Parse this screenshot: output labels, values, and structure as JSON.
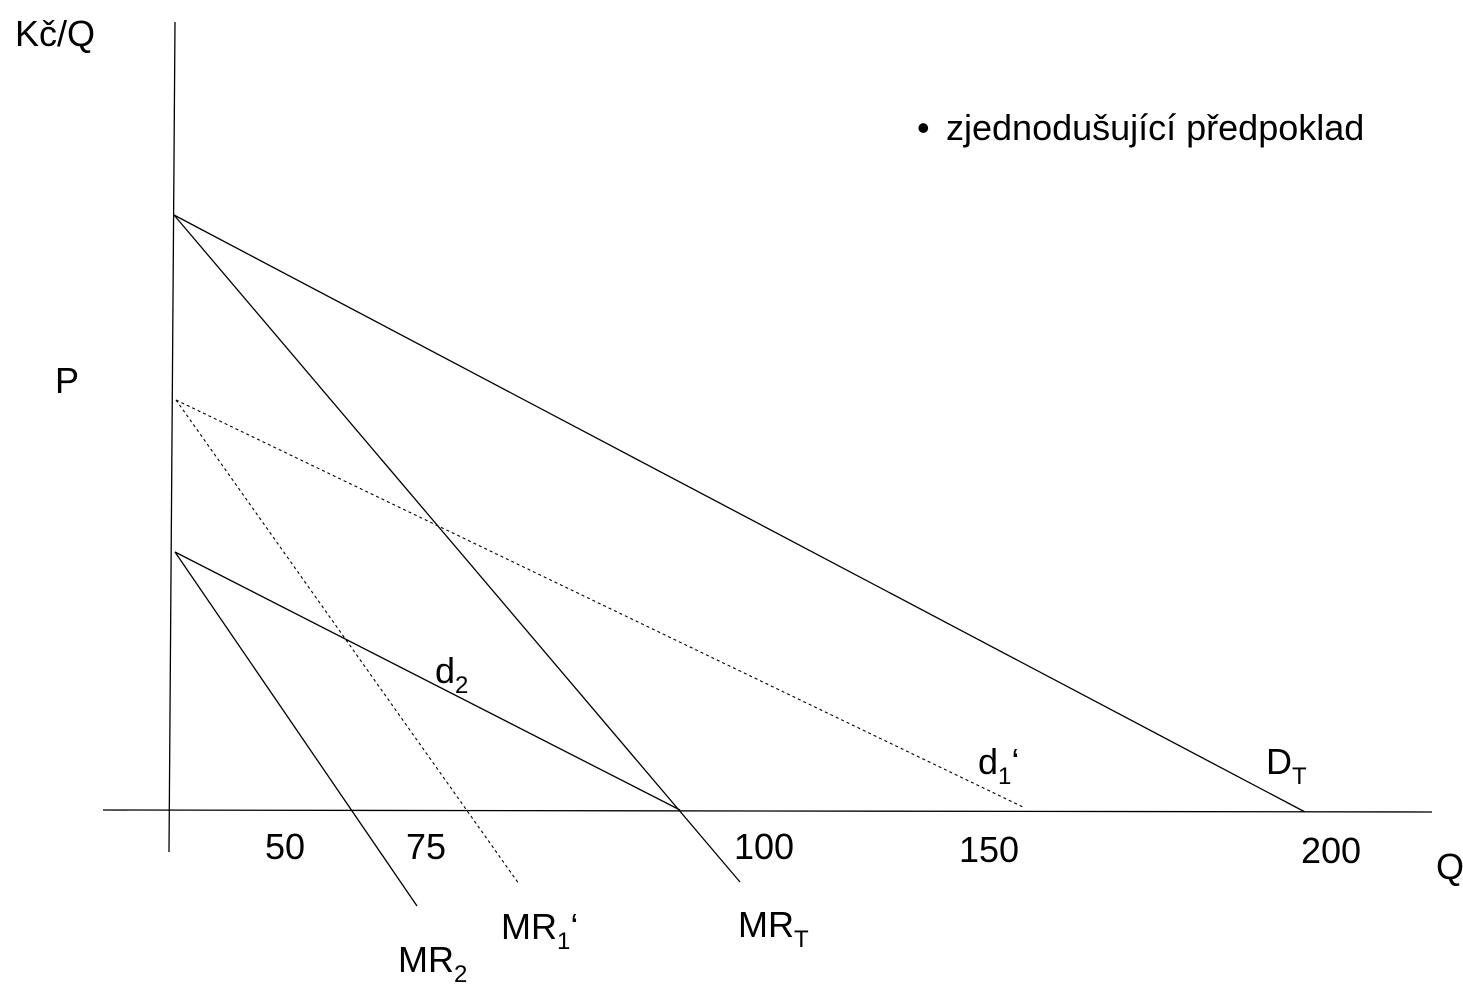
{
  "axes": {
    "y_label": "Kč/Q",
    "x_label": "Q",
    "price_label": "P"
  },
  "x_ticks": [
    "50",
    "75",
    "100",
    "150",
    "200"
  ],
  "note": {
    "bullet": "•",
    "text": "zjednodušující předpoklad"
  },
  "curves": {
    "D_T": {
      "main": "D",
      "sub": "T",
      "style": "solid"
    },
    "MR_T": {
      "main": "MR",
      "sub": "T",
      "style": "solid"
    },
    "d1_prime": {
      "main": "d",
      "sub": "1",
      "suffix": "‘",
      "style": "dashed"
    },
    "MR1_prime": {
      "main": "MR",
      "sub": "1",
      "suffix": "‘",
      "style": "dashed"
    },
    "d2": {
      "main": "d",
      "sub": "2",
      "style": "solid"
    },
    "MR2": {
      "main": "MR",
      "sub": "2",
      "style": "solid"
    }
  },
  "colors": {
    "line": "#000000",
    "background": "#ffffff"
  }
}
